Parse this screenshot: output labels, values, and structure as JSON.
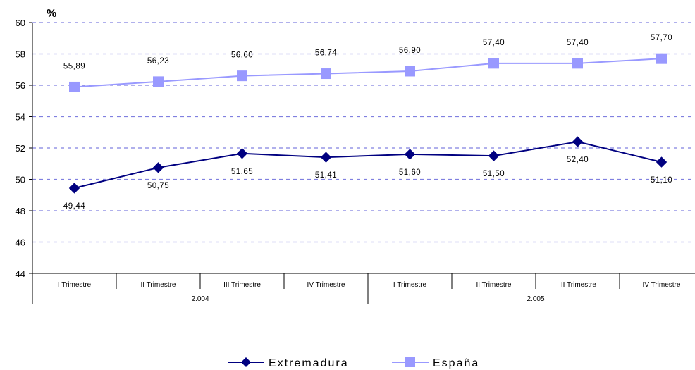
{
  "chart_data": {
    "type": "line",
    "title": "",
    "ylabel": "%",
    "xlabel": "",
    "ylim": [
      44,
      60
    ],
    "yticks": [
      44,
      46,
      48,
      50,
      52,
      54,
      56,
      58,
      60
    ],
    "grid": true,
    "legend_position": "bottom",
    "categories": [
      "I Trimestre",
      "II Trimestre",
      "III Trimestre",
      "IV Trimestre",
      "I Trimestre",
      "II Trimestre",
      "III Trimestre",
      "IV Trimestre"
    ],
    "groups": [
      {
        "label": "2.004",
        "span": 4
      },
      {
        "label": "2.005",
        "span": 4
      }
    ],
    "series": [
      {
        "name": "Extremadura",
        "values": [
          49.44,
          50.75,
          51.65,
          51.41,
          51.6,
          51.5,
          52.4,
          51.1
        ],
        "labels": [
          "49,44",
          "50,75",
          "51,65",
          "51,41",
          "51,60",
          "51,50",
          "52,40",
          "51,10"
        ],
        "color": "#000080",
        "marker": "diamond"
      },
      {
        "name": "España",
        "values": [
          55.89,
          56.23,
          56.6,
          56.74,
          56.9,
          57.4,
          57.4,
          57.7
        ],
        "labels": [
          "55,89",
          "56,23",
          "56,60",
          "56,74",
          "56,90",
          "57,40",
          "57,40",
          "57,70"
        ],
        "color": "#9999FF",
        "marker": "square"
      }
    ]
  }
}
